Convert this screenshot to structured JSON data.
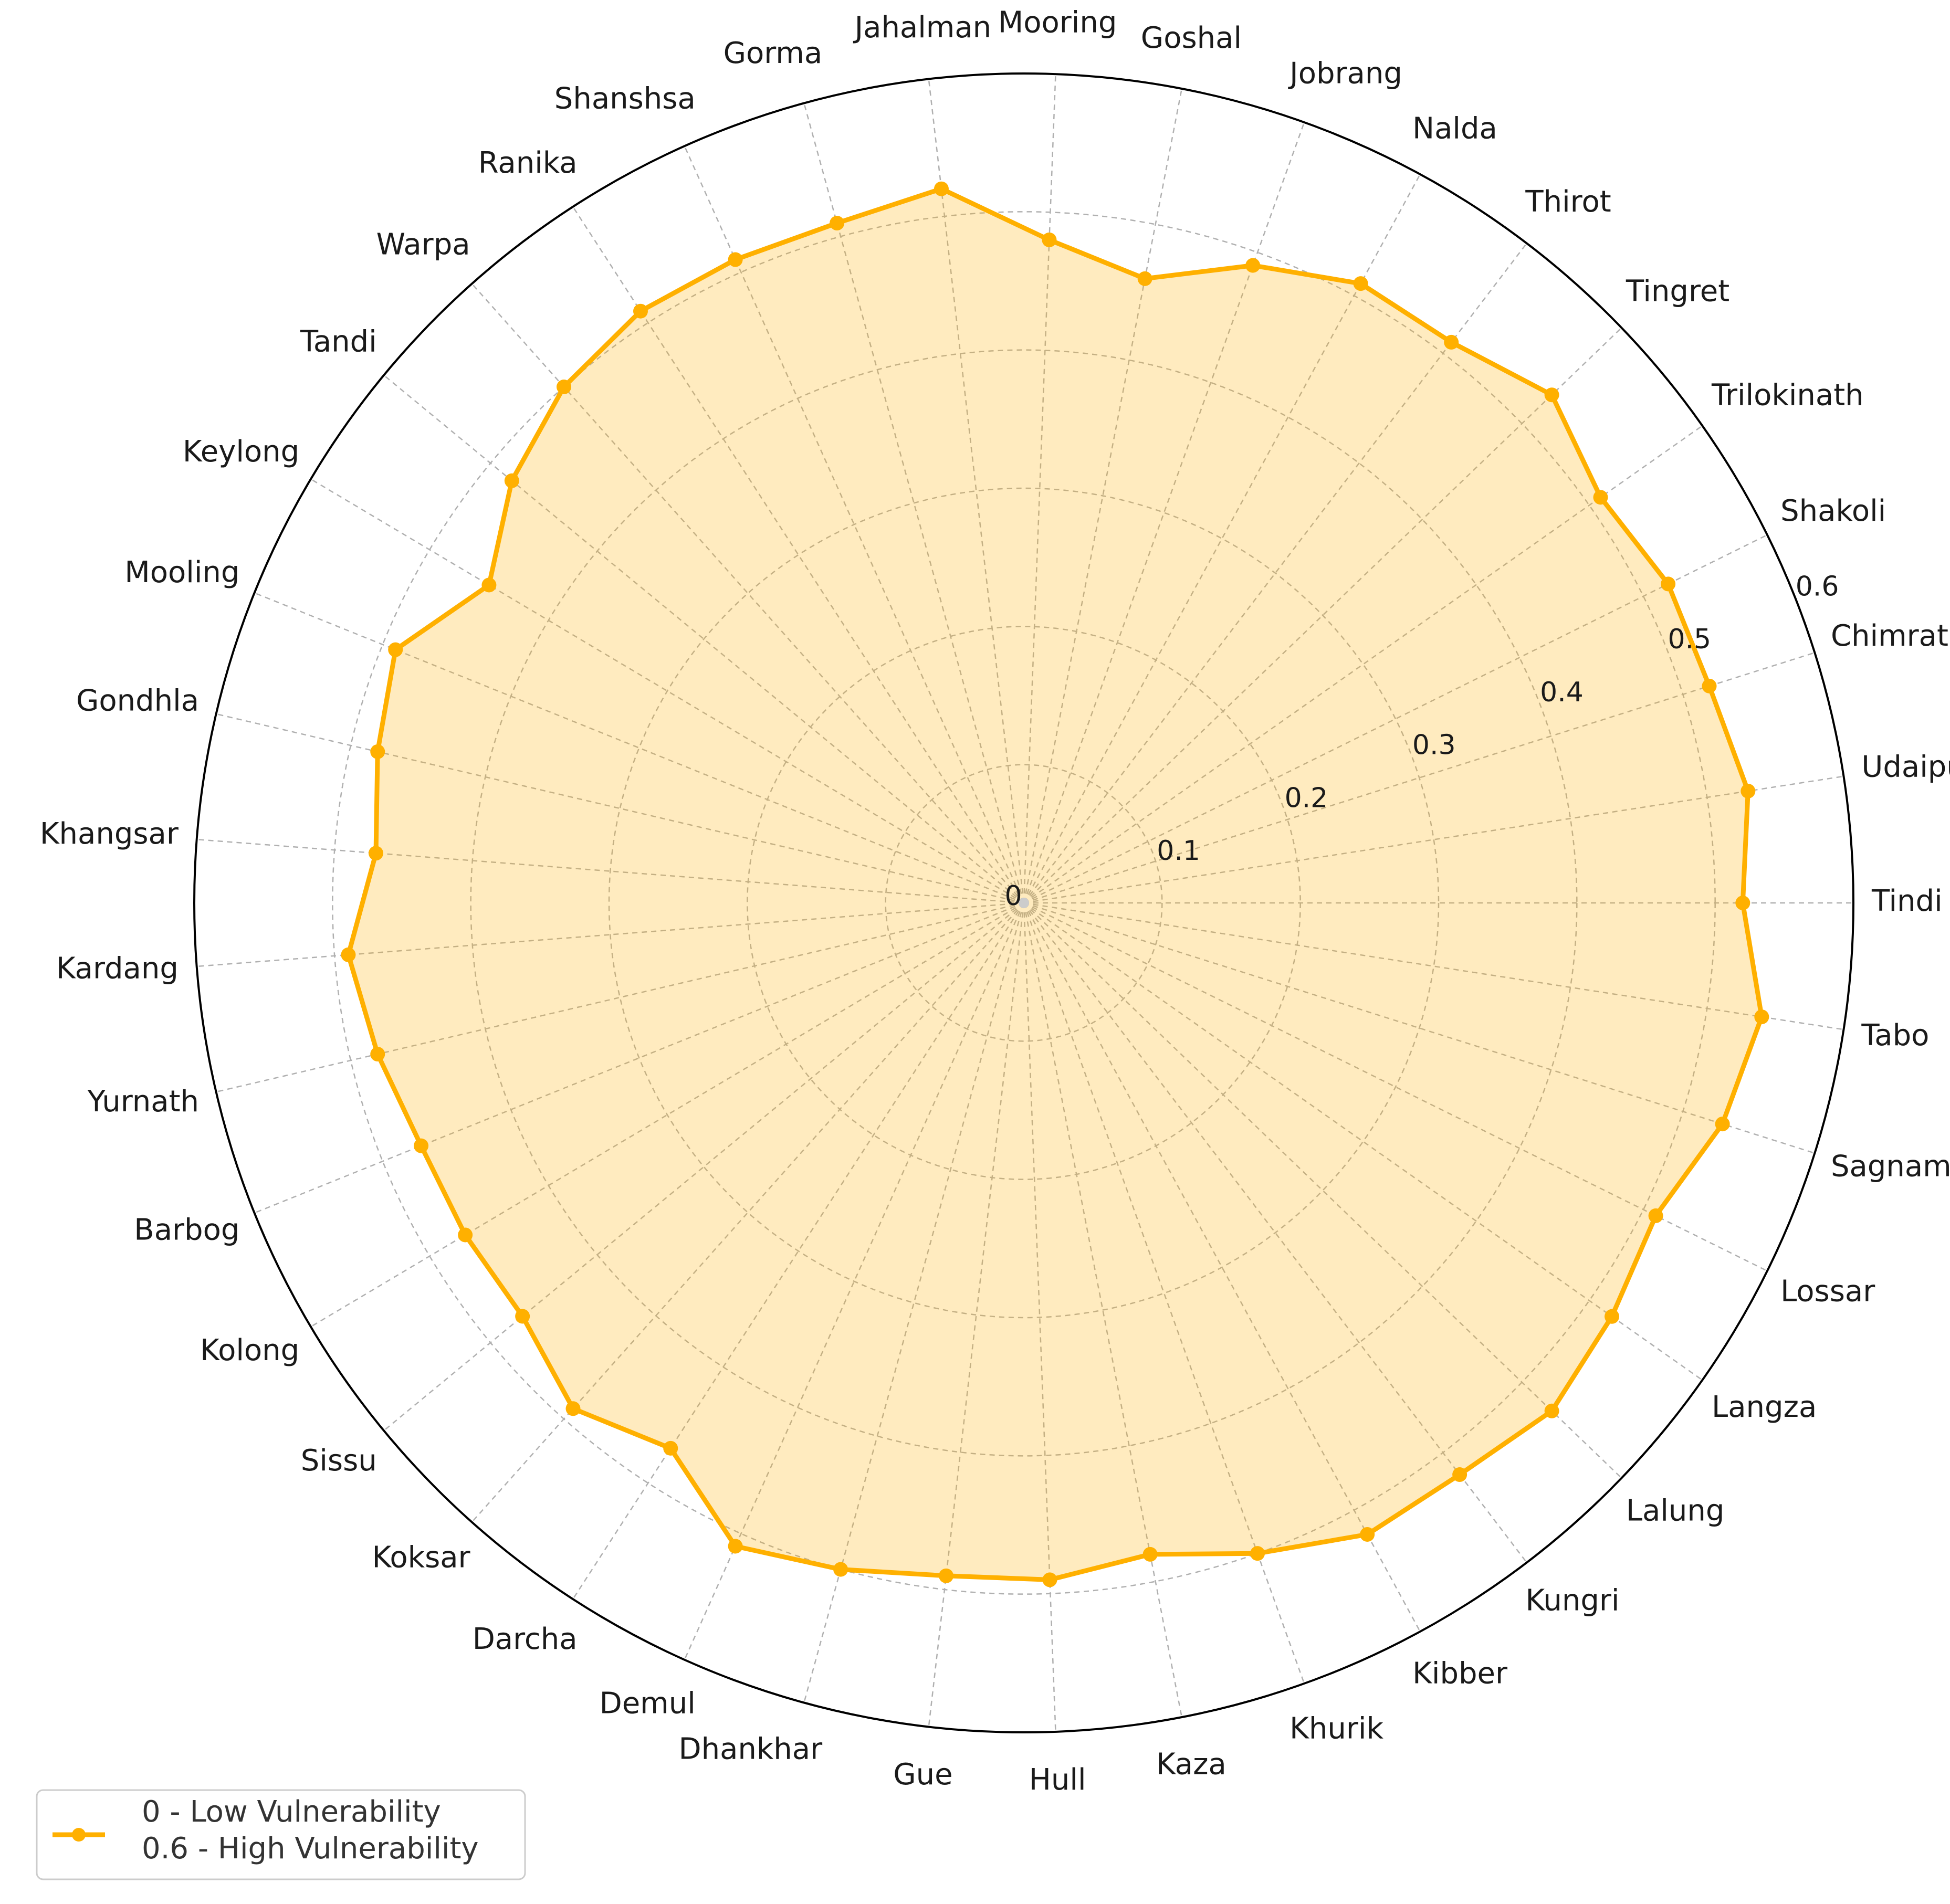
{
  "chart_data": {
    "type": "radar",
    "title": "",
    "categories": [
      "Tindi",
      "Udaipur",
      "Chimrat",
      "Shakoli",
      "Trilokinath",
      "Tingret",
      "Thirot",
      "Nalda",
      "Jobrang",
      "Goshal",
      "Mooring",
      "Jahalman",
      "Gorma",
      "Shanshsa",
      "Ranika",
      "Warpa",
      "Tandi",
      "Keylong",
      "Mooling",
      "Gondhla",
      "Khangsar",
      "Kardang",
      "Yurnath",
      "Barbog",
      "Kolong",
      "Sissu",
      "Koksar",
      "Darcha",
      "Demul",
      "Dhankhar",
      "Gue",
      "Hull",
      "Kaza",
      "Khurik",
      "Kibber",
      "Kungri",
      "Lalung",
      "Langza",
      "Lossar",
      "Sagnam",
      "Tabo"
    ],
    "series": [
      {
        "name": "0 - Low Vulnerability\n0.6 - High Vulnerability",
        "values": [
          0.52,
          0.53,
          0.52,
          0.52,
          0.51,
          0.53,
          0.51,
          0.51,
          0.49,
          0.46,
          0.48,
          0.52,
          0.51,
          0.51,
          0.51,
          0.5,
          0.48,
          0.45,
          0.49,
          0.48,
          0.47,
          0.49,
          0.48,
          0.47,
          0.47,
          0.47,
          0.49,
          0.47,
          0.51,
          0.5,
          0.49,
          0.49,
          0.48,
          0.5,
          0.52,
          0.52,
          0.53,
          0.52,
          0.51,
          0.53,
          0.54
        ],
        "color": "#FFB000"
      }
    ],
    "rlim": [
      0,
      0.6
    ],
    "rticks": [
      0,
      0.1,
      0.2,
      0.3,
      0.4,
      0.5,
      0.6
    ],
    "rtick_labels": [
      "0",
      "0.1",
      "0.2",
      "0.3",
      "0.4",
      "0.5",
      "0.6"
    ],
    "grid": true,
    "legend_position": "bottom-left",
    "legend_lines": [
      "0 - Low Vulnerability",
      "0.6 - High Vulnerability"
    ],
    "fill_color": "#FFB000",
    "grid_color": "#b0b0b0"
  }
}
